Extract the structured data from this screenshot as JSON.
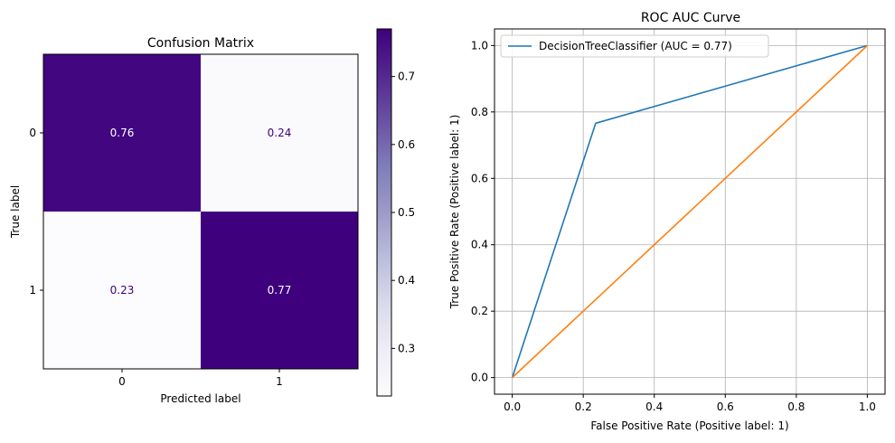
{
  "chart_data": [
    {
      "type": "heatmap",
      "title": "Confusion Matrix",
      "xlabel": "Predicted label",
      "ylabel": "True label",
      "x_categories": [
        "0",
        "1"
      ],
      "y_categories": [
        "0",
        "1"
      ],
      "values": [
        [
          0.76,
          0.24
        ],
        [
          0.23,
          0.77
        ]
      ],
      "colormap": "Purples",
      "colorbar": {
        "min": 0.23,
        "max": 0.77,
        "ticks": [
          0.3,
          0.4,
          0.5,
          0.6,
          0.7
        ],
        "tick_labels": [
          "0.3",
          "0.4",
          "0.5",
          "0.6",
          "0.7"
        ]
      },
      "text_colors": {
        "on_dark": "#ffffff",
        "on_light": "#3f007d"
      }
    },
    {
      "type": "line",
      "title": "ROC AUC Curve",
      "xlabel": "False Positive Rate (Positive label: 1)",
      "ylabel": "True Positive Rate (Positive label: 1)",
      "xlim": [
        0,
        1
      ],
      "ylim": [
        0,
        1
      ],
      "xticks": [
        0.0,
        0.2,
        0.4,
        0.6,
        0.8,
        1.0
      ],
      "yticks": [
        0.0,
        0.2,
        0.4,
        0.6,
        0.8,
        1.0
      ],
      "xtick_labels": [
        "0.0",
        "0.2",
        "0.4",
        "0.6",
        "0.8",
        "1.0"
      ],
      "ytick_labels": [
        "0.0",
        "0.2",
        "0.4",
        "0.6",
        "0.8",
        "1.0"
      ],
      "grid": true,
      "legend_position": "top-left",
      "series": [
        {
          "name": "DecisionTreeClassifier (AUC = 0.77)",
          "color": "#1f77b4",
          "x": [
            0.0,
            0.235,
            1.0
          ],
          "y": [
            0.0,
            0.766,
            1.0
          ],
          "in_legend": true
        },
        {
          "name": "",
          "color": "#ff7f0e",
          "x": [
            0.0,
            1.0
          ],
          "y": [
            0.0,
            1.0
          ],
          "in_legend": false
        }
      ]
    }
  ]
}
